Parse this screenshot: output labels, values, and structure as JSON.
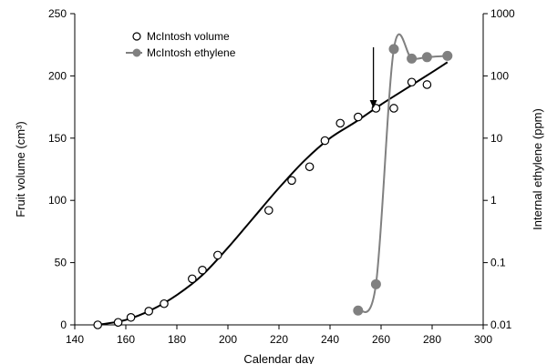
{
  "chart_data": {
    "type": "line",
    "title": "",
    "xlabel": "Calendar day",
    "ylabel_left": "Fruit volume (cm³)",
    "ylabel_right": "Internal ethylene (ppm)",
    "xlim": [
      140,
      300
    ],
    "ylim_left": [
      0,
      250
    ],
    "ylim_right": [
      0.01,
      1000
    ],
    "y_right_scale": "log",
    "x_ticks": [
      140,
      160,
      180,
      200,
      220,
      240,
      260,
      280,
      300
    ],
    "y_left_ticks": [
      0,
      50,
      100,
      150,
      200,
      250
    ],
    "y_right_ticks": [
      0.01,
      0.1,
      1,
      10,
      100,
      1000
    ],
    "y_right_tick_labels": [
      "0.01",
      "0.1",
      "1",
      "10",
      "100",
      "1000"
    ],
    "grid": false,
    "legend_position": "top-left",
    "series": [
      {
        "name": "McIntosh volume",
        "axis": "left",
        "marker": "open-circle",
        "color": "#000000",
        "x": [
          149,
          157,
          162,
          169,
          175,
          186,
          190,
          196,
          216,
          225,
          232,
          238,
          244,
          251,
          258,
          265,
          272,
          278
        ],
        "y": [
          0,
          2,
          6,
          11,
          17,
          37,
          44,
          56,
          92,
          116,
          127,
          148,
          162,
          167,
          174,
          174,
          195,
          193
        ]
      },
      {
        "name": "McIntosh ethylene",
        "axis": "right",
        "marker": "filled-circle",
        "color": "#808080",
        "x": [
          251,
          258,
          265,
          272,
          278,
          286
        ],
        "y": [
          0.017,
          0.045,
          270,
          190,
          200,
          210
        ]
      }
    ],
    "trend_line": {
      "axis": "left",
      "color": "#000000",
      "x": [
        149,
        160,
        170,
        180,
        190,
        200,
        210,
        220,
        230,
        240,
        250,
        260,
        270,
        280,
        286
      ],
      "y": [
        0,
        4,
        12,
        24,
        40,
        62,
        86,
        110,
        132,
        150,
        163,
        177,
        190,
        203,
        211
      ]
    },
    "annotations": [
      {
        "type": "arrow",
        "x": 257,
        "y_from": 223,
        "y_to": 174,
        "axis": "left"
      }
    ]
  }
}
